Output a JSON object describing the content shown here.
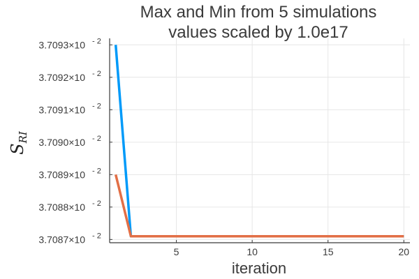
{
  "chart_data": {
    "type": "line",
    "title_lines": [
      "Max and Min from 5 simulations",
      "values scaled by 1.0e17"
    ],
    "xlabel": "iteration",
    "ylabel": "S",
    "ylabel_subscript": "RI",
    "xlim": [
      0.6,
      20.4
    ],
    "ylim": [
      3.70869,
      3.70932
    ],
    "xticks": [
      5,
      10,
      15,
      20
    ],
    "xtick_labels": [
      "5",
      "10",
      "15",
      "20"
    ],
    "yticks": [
      3.7087,
      3.7088,
      3.7089,
      3.709,
      3.7091,
      3.7092,
      3.7093
    ],
    "ytick_labels": [
      {
        "main": "3.7087×10",
        "exp": "- 2"
      },
      {
        "main": "3.7088×10",
        "exp": "- 2"
      },
      {
        "main": "3.7089×10",
        "exp": "- 2"
      },
      {
        "main": "3.7090×10",
        "exp": "- 2"
      },
      {
        "main": "3.7091×10",
        "exp": "- 2"
      },
      {
        "main": "3.7092×10",
        "exp": "- 2"
      },
      {
        "main": "3.7093×10",
        "exp": "- 2"
      }
    ],
    "grid": true,
    "legend": "none",
    "x": [
      1,
      2,
      3,
      4,
      5,
      6,
      7,
      8,
      9,
      10,
      11,
      12,
      13,
      14,
      15,
      16,
      17,
      18,
      19,
      20
    ],
    "series": [
      {
        "color": "#009af9",
        "values": [
          3.7093,
          3.70871,
          3.70871,
          3.70871,
          3.70871,
          3.70871,
          3.70871,
          3.70871,
          3.70871,
          3.70871,
          3.70871,
          3.70871,
          3.70871,
          3.70871,
          3.70871,
          3.70871,
          3.70871,
          3.70871,
          3.70871,
          3.70871
        ]
      },
      {
        "color": "#e26f46",
        "values": [
          3.7089,
          3.70871,
          3.70871,
          3.70871,
          3.70871,
          3.70871,
          3.70871,
          3.70871,
          3.70871,
          3.70871,
          3.70871,
          3.70871,
          3.70871,
          3.70871,
          3.70871,
          3.70871,
          3.70871,
          3.70871,
          3.70871,
          3.70871
        ]
      }
    ]
  }
}
